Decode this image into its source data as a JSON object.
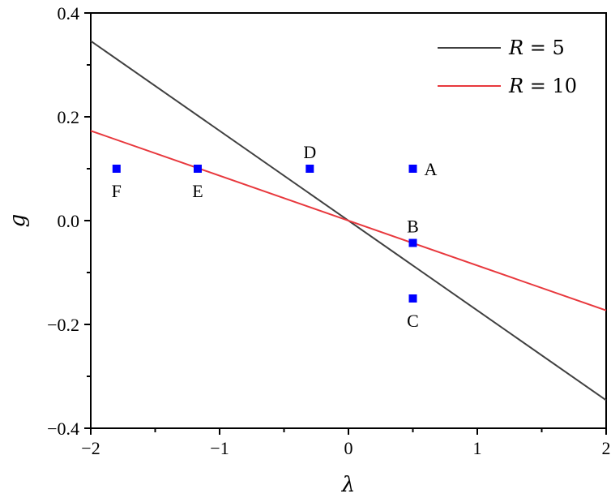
{
  "chart_data": {
    "type": "line",
    "title": "",
    "xlabel": "λ",
    "ylabel": "g",
    "xlim": [
      -2,
      2
    ],
    "ylim": [
      -0.4,
      0.4
    ],
    "x_ticks": [
      -2,
      -1,
      0,
      1,
      2
    ],
    "x_tick_labels": [
      "−2",
      "−1",
      "0",
      "1",
      "2"
    ],
    "y_ticks": [
      -0.4,
      -0.2,
      0.0,
      0.2,
      0.4
    ],
    "y_tick_labels": [
      "−0.4",
      "−0.2",
      "0.0",
      "0.2",
      "0.4"
    ],
    "grid": false,
    "legend_position": "top-right",
    "series": [
      {
        "name": "R = 5",
        "legend_var": "R",
        "legend_rest": " = 5",
        "color": "#404040",
        "x": [
          -2,
          2
        ],
        "y": [
          0.346,
          -0.346
        ]
      },
      {
        "name": "R = 10",
        "legend_var": "R",
        "legend_rest": " = 10",
        "color": "#e8383d",
        "x": [
          -2,
          2
        ],
        "y": [
          0.173,
          -0.173
        ]
      }
    ],
    "points": [
      {
        "label": "A",
        "x": 0.5,
        "y": 0.1,
        "label_pos": "right"
      },
      {
        "label": "B",
        "x": 0.5,
        "y": -0.043,
        "label_pos": "above"
      },
      {
        "label": "C",
        "x": 0.5,
        "y": -0.15,
        "label_pos": "below"
      },
      {
        "label": "D",
        "x": -0.3,
        "y": 0.1,
        "label_pos": "above"
      },
      {
        "label": "E",
        "x": -1.17,
        "y": 0.1,
        "label_pos": "below"
      },
      {
        "label": "F",
        "x": -1.8,
        "y": 0.1,
        "label_pos": "below"
      }
    ],
    "point_color": "#0000ff"
  }
}
